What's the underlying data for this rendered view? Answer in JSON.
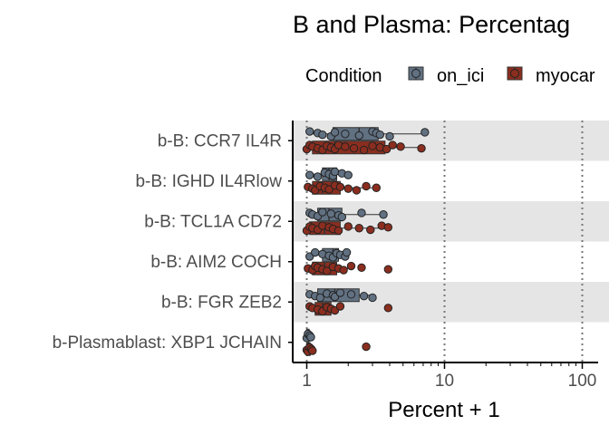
{
  "chart_data": {
    "type": "boxplot",
    "title": "B and Plasma: Percentag",
    "xlabel": "Percent + 1",
    "ylabel": "",
    "x_scale": "log10",
    "xlim": [
      0.88,
      110
    ],
    "x_ticks": [
      1,
      10,
      100
    ],
    "x_tick_labels": [
      "1",
      "10",
      "100"
    ],
    "vlines": [
      1,
      10,
      100
    ],
    "legend": {
      "title": "Condition",
      "position": "top",
      "entries": [
        {
          "label": "on_ici",
          "color": "#617182"
        },
        {
          "label": "myocar",
          "color": "#8b2e1f"
        }
      ]
    },
    "categories": [
      "b-B: CCR7 IL4R",
      "b-B: IGHD IL4Rlow",
      "b-B: TCL1A CD72",
      "b-B: AIM2 COCH",
      "b-B: FGR ZEB2",
      "b-Plasmablast: XBP1 JCHAIN"
    ],
    "series": [
      {
        "name": "on_ici",
        "color": "#617182",
        "boxes": [
          {
            "min": 1.05,
            "q1": 1.55,
            "median": 2.4,
            "q3": 3.3,
            "max": 7.2
          },
          {
            "min": 1.05,
            "q1": 1.3,
            "median": 1.45,
            "q3": 1.65,
            "max": 2.0
          },
          {
            "min": 1.05,
            "q1": 1.2,
            "median": 1.45,
            "q3": 1.8,
            "max": 3.6
          },
          {
            "min": 1.05,
            "q1": 1.3,
            "median": 1.55,
            "q3": 1.7,
            "max": 1.95
          },
          {
            "min": 1.05,
            "q1": 1.2,
            "median": 1.6,
            "q3": 2.4,
            "max": 3.0
          },
          {
            "min": 1.0,
            "q1": 1.0,
            "median": 1.0,
            "q3": 1.04,
            "max": 1.07
          }
        ],
        "points": [
          [
            1.05,
            1.2,
            1.3,
            1.5,
            1.6,
            1.9,
            2.4,
            3.0,
            3.2,
            3.4,
            4.0,
            7.2
          ],
          [
            1.05,
            1.2,
            1.35,
            1.45,
            1.55,
            1.6,
            1.8,
            2.0
          ],
          [
            1.05,
            1.1,
            1.2,
            1.3,
            1.5,
            1.7,
            1.8,
            2.5,
            3.6
          ],
          [
            1.05,
            1.15,
            1.3,
            1.45,
            1.55,
            1.65,
            1.75,
            1.9,
            1.95
          ],
          [
            1.05,
            1.15,
            1.25,
            1.4,
            1.55,
            1.6,
            1.75,
            2.1,
            2.6,
            3.0
          ],
          [
            1.0,
            1.02,
            1.05,
            1.07
          ]
        ]
      },
      {
        "name": "myocar",
        "color": "#8b2e1f",
        "boxes": [
          {
            "min": 1.0,
            "q1": 1.1,
            "median": 1.6,
            "q3": 3.7,
            "max": 6.8
          },
          {
            "min": 1.02,
            "q1": 1.1,
            "median": 1.3,
            "q3": 1.75,
            "max": 3.2
          },
          {
            "min": 1.0,
            "q1": 1.05,
            "median": 1.35,
            "q3": 1.75,
            "max": 3.9
          },
          {
            "min": 1.02,
            "q1": 1.1,
            "median": 1.35,
            "q3": 1.65,
            "max": 2.1
          },
          {
            "min": 1.05,
            "q1": 1.15,
            "median": 1.3,
            "q3": 1.5,
            "max": 1.75
          },
          {
            "min": 1.0,
            "q1": 1.0,
            "median": 1.03,
            "q3": 1.06,
            "max": 1.1
          }
        ],
        "points": [
          [
            1.0,
            1.05,
            1.1,
            1.2,
            1.3,
            1.4,
            1.5,
            1.6,
            1.7,
            1.9,
            2.2,
            2.6,
            3.0,
            3.4,
            3.8,
            4.2,
            4.8,
            6.8
          ],
          [
            1.02,
            1.1,
            1.15,
            1.25,
            1.35,
            1.45,
            1.6,
            1.75,
            2.0,
            2.3,
            2.7,
            3.2
          ],
          [
            1.0,
            1.05,
            1.1,
            1.2,
            1.3,
            1.45,
            1.55,
            1.7,
            2.0,
            2.4,
            2.9,
            3.5,
            3.9
          ],
          [
            1.02,
            1.1,
            1.15,
            1.2,
            1.3,
            1.4,
            1.55,
            1.7,
            1.85,
            2.1,
            2.5,
            3.9
          ],
          [
            1.05,
            1.1,
            1.2,
            1.3,
            1.4,
            1.5,
            1.6,
            1.75,
            3.9
          ],
          [
            1.0,
            1.02,
            1.05,
            1.08,
            1.1,
            2.7
          ]
        ]
      }
    ]
  }
}
